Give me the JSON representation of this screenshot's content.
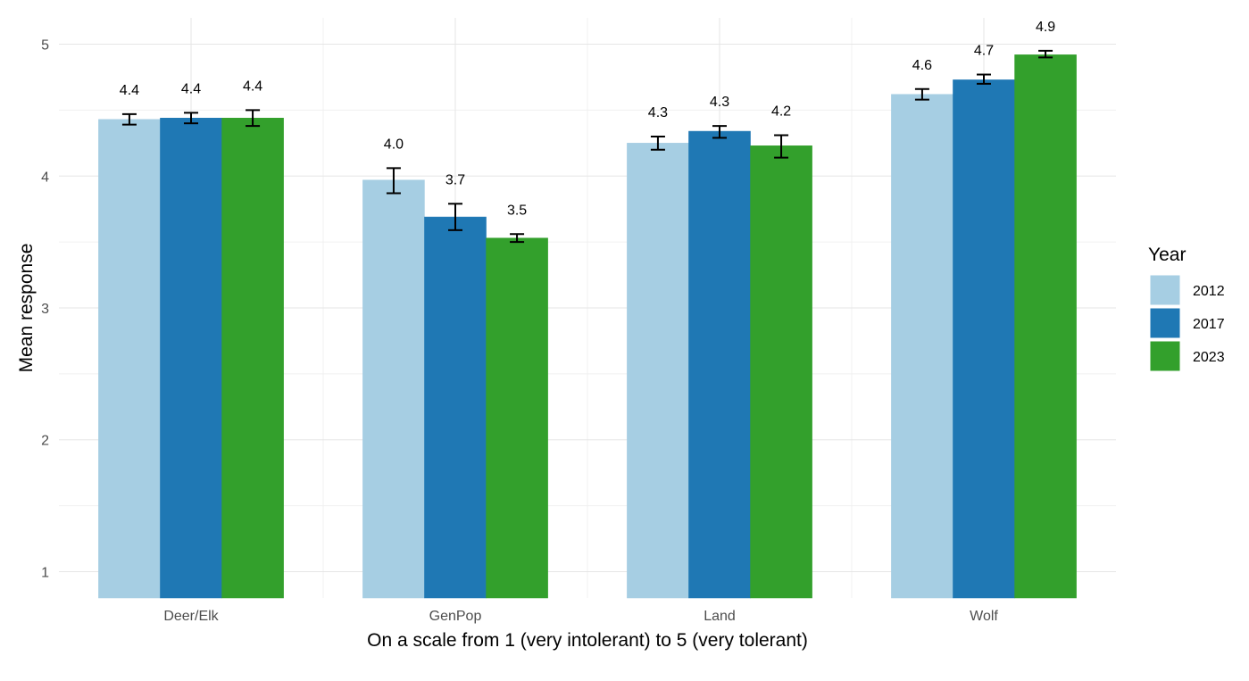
{
  "chart_data": {
    "type": "bar",
    "title": "",
    "xlabel": "On a scale from 1 (very intolerant) to 5 (very tolerant)",
    "ylabel": "Mean response",
    "ylim": [
      0.8,
      5.2
    ],
    "yticks": [
      1,
      2,
      3,
      4,
      5
    ],
    "y_tick_labels": [
      "1",
      "2",
      "3",
      "4",
      "5"
    ],
    "categories": [
      "Deer/Elk",
      "GenPop",
      "Land",
      "Wolf"
    ],
    "grid": true,
    "legend": {
      "title": "Year",
      "placement": "right"
    },
    "series": [
      {
        "name": "2012",
        "color": "#a6cee3",
        "values": [
          4.43,
          3.97,
          4.25,
          4.62
        ],
        "error_low": [
          4.39,
          3.87,
          4.2,
          4.58
        ],
        "error_high": [
          4.47,
          4.06,
          4.3,
          4.66
        ],
        "labels": [
          "4.4",
          "4.0",
          "4.3",
          "4.6"
        ]
      },
      {
        "name": "2017",
        "color": "#1f78b4",
        "values": [
          4.44,
          3.69,
          4.34,
          4.73
        ],
        "error_low": [
          4.4,
          3.59,
          4.29,
          4.7
        ],
        "error_high": [
          4.48,
          3.79,
          4.38,
          4.77
        ],
        "labels": [
          "4.4",
          "3.7",
          "4.3",
          "4.7"
        ]
      },
      {
        "name": "2023",
        "color": "#33a02c",
        "values": [
          4.44,
          3.53,
          4.23,
          4.92
        ],
        "error_low": [
          4.38,
          3.5,
          4.14,
          4.9
        ],
        "error_high": [
          4.5,
          3.56,
          4.31,
          4.95
        ],
        "labels": [
          "4.4",
          "3.5",
          "4.2",
          "4.9"
        ]
      }
    ]
  }
}
